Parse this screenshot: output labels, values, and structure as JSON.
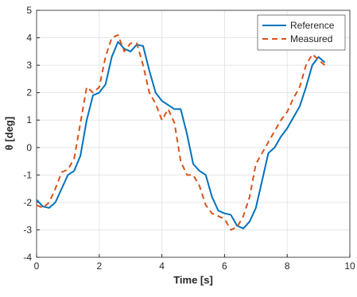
{
  "chart_data": {
    "type": "line",
    "x_label": "Time [s]",
    "y_label": "θ [deg]",
    "x": [
      0,
      0.2,
      0.4,
      0.6,
      0.8,
      1.0,
      1.2,
      1.4,
      1.6,
      1.8,
      2.0,
      2.2,
      2.4,
      2.6,
      2.8,
      3.0,
      3.2,
      3.4,
      3.6,
      3.8,
      4.0,
      4.2,
      4.4,
      4.6,
      4.8,
      5.0,
      5.2,
      5.4,
      5.6,
      5.8,
      6.0,
      6.2,
      6.4,
      6.6,
      6.8,
      7.0,
      7.2,
      7.4,
      7.6,
      7.8,
      8.0,
      8.2,
      8.4,
      8.6,
      8.8,
      9.0,
      9.2
    ],
    "series": [
      {
        "name": "Reference",
        "color": "#0072bd",
        "dash": false,
        "values": [
          -1.9,
          -2.15,
          -2.2,
          -2.0,
          -1.5,
          -1.0,
          -0.85,
          -0.3,
          1.0,
          1.9,
          2.0,
          2.3,
          3.3,
          3.85,
          3.6,
          3.5,
          3.75,
          3.7,
          2.8,
          2.0,
          1.7,
          1.55,
          1.4,
          1.4,
          0.5,
          -0.6,
          -0.85,
          -1.0,
          -1.8,
          -2.3,
          -2.4,
          -2.45,
          -2.85,
          -2.95,
          -2.7,
          -2.2,
          -1.2,
          -0.2,
          0.0,
          0.4,
          0.7,
          1.1,
          1.5,
          2.2,
          3.0,
          3.3,
          3.1
        ]
      },
      {
        "name": "Measured",
        "color": "#d95319",
        "dash": true,
        "values": [
          -2.1,
          -2.2,
          -2.0,
          -1.5,
          -0.9,
          -0.8,
          -0.4,
          0.9,
          2.2,
          2.0,
          2.2,
          3.3,
          4.0,
          4.1,
          3.5,
          3.8,
          3.8,
          3.0,
          2.0,
          1.6,
          1.0,
          1.4,
          0.9,
          -0.5,
          -1.0,
          -1.0,
          -1.4,
          -2.1,
          -2.4,
          -2.5,
          -2.6,
          -3.0,
          -2.9,
          -2.5,
          -1.8,
          -0.6,
          -0.2,
          0.2,
          0.6,
          1.0,
          1.3,
          1.8,
          2.2,
          3.0,
          3.4,
          3.2,
          3.0
        ]
      }
    ],
    "xlim": [
      0,
      10
    ],
    "xticks": [
      0,
      2,
      4,
      6,
      8,
      10
    ],
    "ylim": [
      -4,
      5
    ],
    "yticks": [
      -4,
      -3,
      -2,
      -1,
      0,
      1,
      2,
      3,
      4,
      5
    ],
    "grid": true,
    "legend": "northeast"
  }
}
